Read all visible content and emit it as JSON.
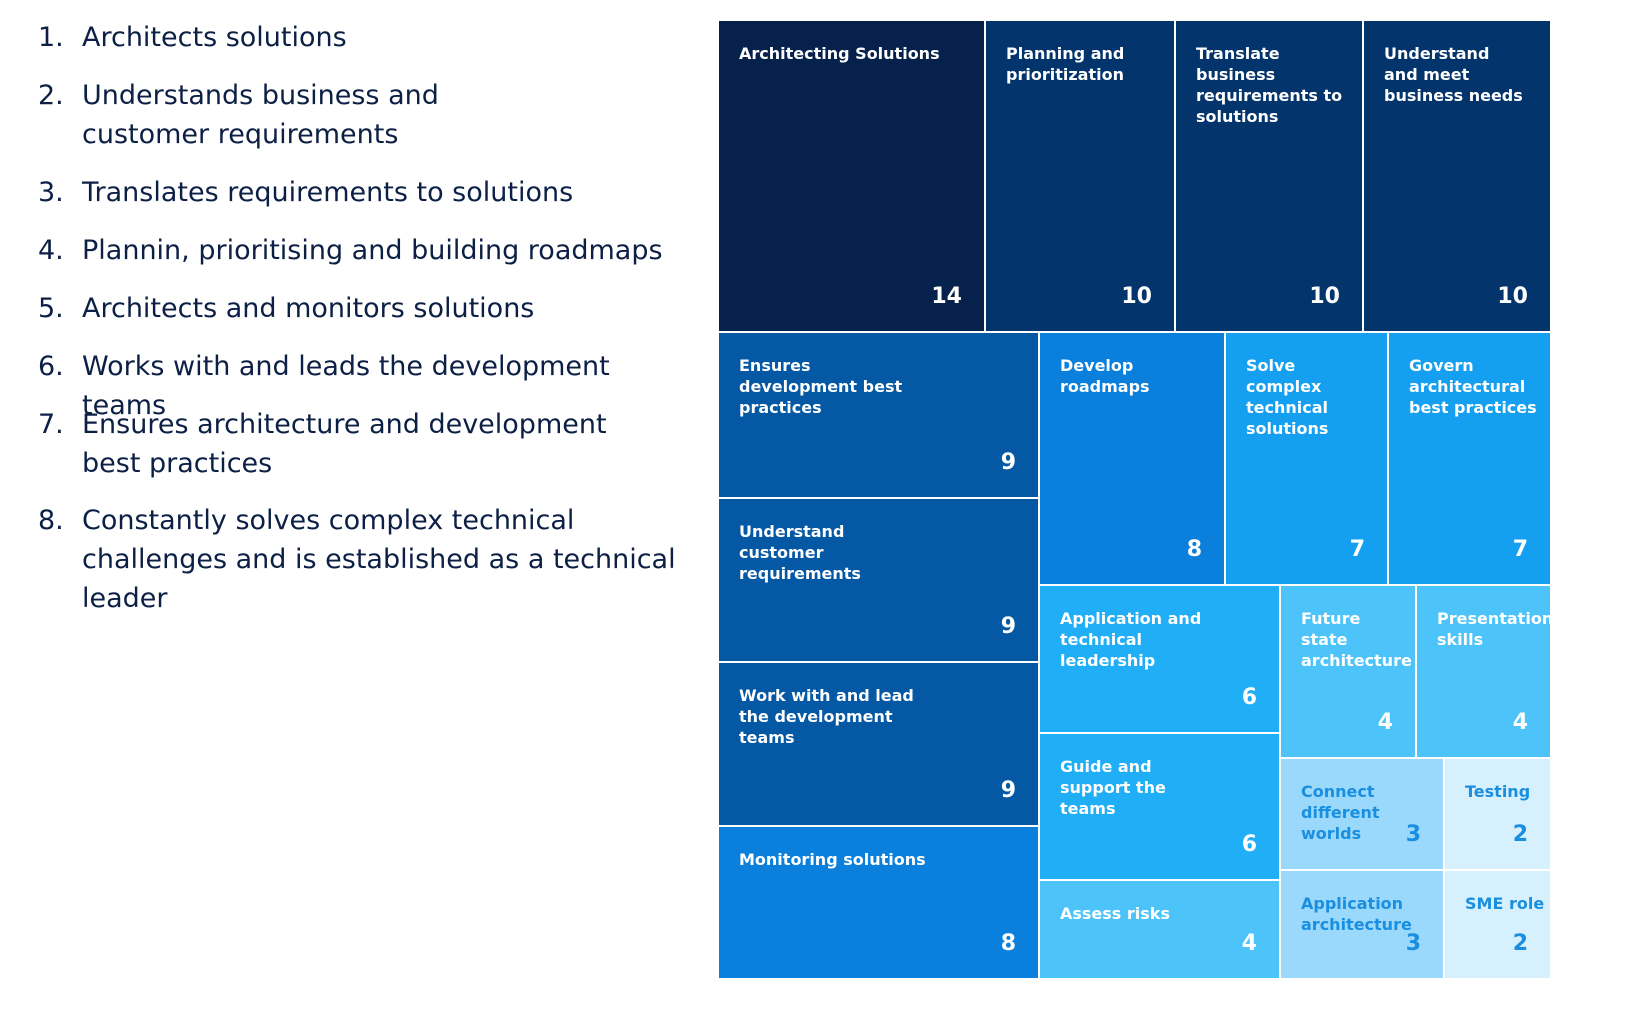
{
  "list": {
    "items": [
      {
        "number": "1.",
        "text": "Architects solutions"
      },
      {
        "number": "2.",
        "text": "Understands business and customer requirements"
      },
      {
        "number": "3.",
        "text": "Translates requirements to solutions"
      },
      {
        "number": "4.",
        "text": "Plannin, prioritising and building roadmaps"
      },
      {
        "number": "5.",
        "text": "Architects and monitors solutions"
      },
      {
        "number": "6.",
        "text": "Works with and leads the development teams"
      },
      {
        "number": "7.",
        "text": "Ensures architecture and development best practices"
      },
      {
        "number": "8.",
        "text": "Constantly solves complex technical challenges and is established as a technical leader"
      }
    ]
  },
  "chart_data": {
    "type": "treemap",
    "items": [
      {
        "name": "Architecting Solutions",
        "value": 14,
        "color": "#06214b",
        "label_color": "#ffffff"
      },
      {
        "name": "Planning and prioritization",
        "value": 10,
        "color": "#04346c",
        "label_color": "#ffffff"
      },
      {
        "name": "Translate business requirements to solutions",
        "value": 10,
        "color": "#04346c",
        "label_color": "#ffffff"
      },
      {
        "name": "Understand and meet business needs",
        "value": 10,
        "color": "#04346c",
        "label_color": "#ffffff"
      },
      {
        "name": "Ensures development best practices",
        "value": 9,
        "color": "#0458a4",
        "label_color": "#ffffff"
      },
      {
        "name": "Understand customer requirements",
        "value": 9,
        "color": "#0458a4",
        "label_color": "#ffffff"
      },
      {
        "name": "Work with and lead the development teams",
        "value": 9,
        "color": "#0458a4",
        "label_color": "#ffffff"
      },
      {
        "name": "Monitoring solutions",
        "value": 8,
        "color": "#0a80dc",
        "label_color": "#ffffff"
      },
      {
        "name": "Develop roadmaps",
        "value": 8,
        "color": "#0a80dc",
        "label_color": "#ffffff"
      },
      {
        "name": "Solve complex technical solutions",
        "value": 7,
        "color": "#149ff0",
        "label_color": "#ffffff"
      },
      {
        "name": "Govern architectural best practices",
        "value": 7,
        "color": "#149ff0",
        "label_color": "#ffffff"
      },
      {
        "name": "Application and technical leadership",
        "value": 6,
        "color": "#20aef6",
        "label_color": "#ffffff"
      },
      {
        "name": "Guide and support the teams",
        "value": 6,
        "color": "#20aef6",
        "label_color": "#ffffff"
      },
      {
        "name": "Assess risks",
        "value": 4,
        "color": "#4cc4fa",
        "label_color": "#ffffff"
      },
      {
        "name": "Future state architecture",
        "value": 4,
        "color": "#4cc4fa",
        "label_color": "#ffffff"
      },
      {
        "name": "Presentation skills",
        "value": 4,
        "color": "#4cc4fa",
        "label_color": "#ffffff"
      },
      {
        "name": "Connect different worlds",
        "value": 3,
        "color": "#9ad9fb",
        "label_color": "#1a8fe0"
      },
      {
        "name": "Testing",
        "value": 2,
        "color": "#d6f1fd",
        "label_color": "#1a8fe0"
      },
      {
        "name": "Application architecture",
        "value": 3,
        "color": "#9ad9fb",
        "label_color": "#1a8fe0"
      },
      {
        "name": "SME role",
        "value": 2,
        "color": "#d6f1fd",
        "label_color": "#1a8fe0"
      }
    ]
  }
}
